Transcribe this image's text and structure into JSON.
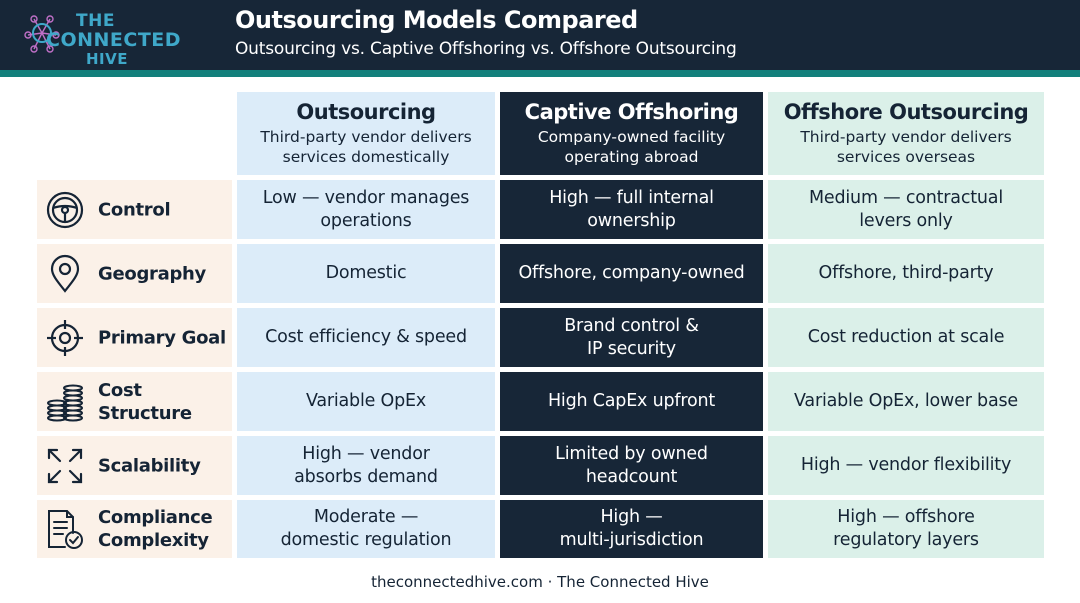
{
  "logo": {
    "line1": "THE",
    "line2": "CONNECTED",
    "line3": "HIVE"
  },
  "header": {
    "title": "Outsourcing Models Compared",
    "subtitle": "Outsourcing vs. Captive Offshoring vs. Offshore Outsourcing"
  },
  "columns": [
    {
      "title": "Outsourcing",
      "desc": "Third-party vendor delivers\nservices domestically"
    },
    {
      "title": "Captive Offshoring",
      "desc": "Company-owned facility\noperating abroad"
    },
    {
      "title": "Offshore Outsourcing",
      "desc": "Third-party vendor delivers\nservices overseas"
    }
  ],
  "rows": [
    {
      "label": "Control",
      "icon": "steering-wheel-icon",
      "cells": [
        "Low — vendor manages\noperations",
        "High — full internal\nownership",
        "Medium — contractual\nlevers only"
      ]
    },
    {
      "label": "Geography",
      "icon": "map-pin-icon",
      "cells": [
        "Domestic",
        "Offshore, company-owned",
        "Offshore, third-party"
      ]
    },
    {
      "label": "Primary Goal",
      "icon": "target-icon",
      "cells": [
        "Cost efficiency & speed",
        "Brand control &\nIP security",
        "Cost reduction at scale"
      ]
    },
    {
      "label": "Cost Structure",
      "icon": "coins-icon",
      "cells": [
        "Variable OpEx",
        "High CapEx upfront",
        "Variable OpEx, lower base"
      ]
    },
    {
      "label": "Scalability",
      "icon": "expand-arrows-icon",
      "cells": [
        "High — vendor\nabsorbs demand",
        "Limited by owned\nheadcount",
        "High — vendor flexibility"
      ]
    },
    {
      "label": "Compliance\nComplexity",
      "icon": "document-check-icon",
      "cells": [
        "Moderate —\ndomestic regulation",
        "High —\nmulti-jurisdiction",
        "High — offshore\nregulatory layers"
      ]
    }
  ],
  "footer": "theconnectedhive.com · The Connected Hive",
  "colors": {
    "navy": "#172637",
    "teal": "#13807c",
    "light_blue": "#dcecf9",
    "mint": "#dbf0e9",
    "peach": "#fbf1e8"
  }
}
